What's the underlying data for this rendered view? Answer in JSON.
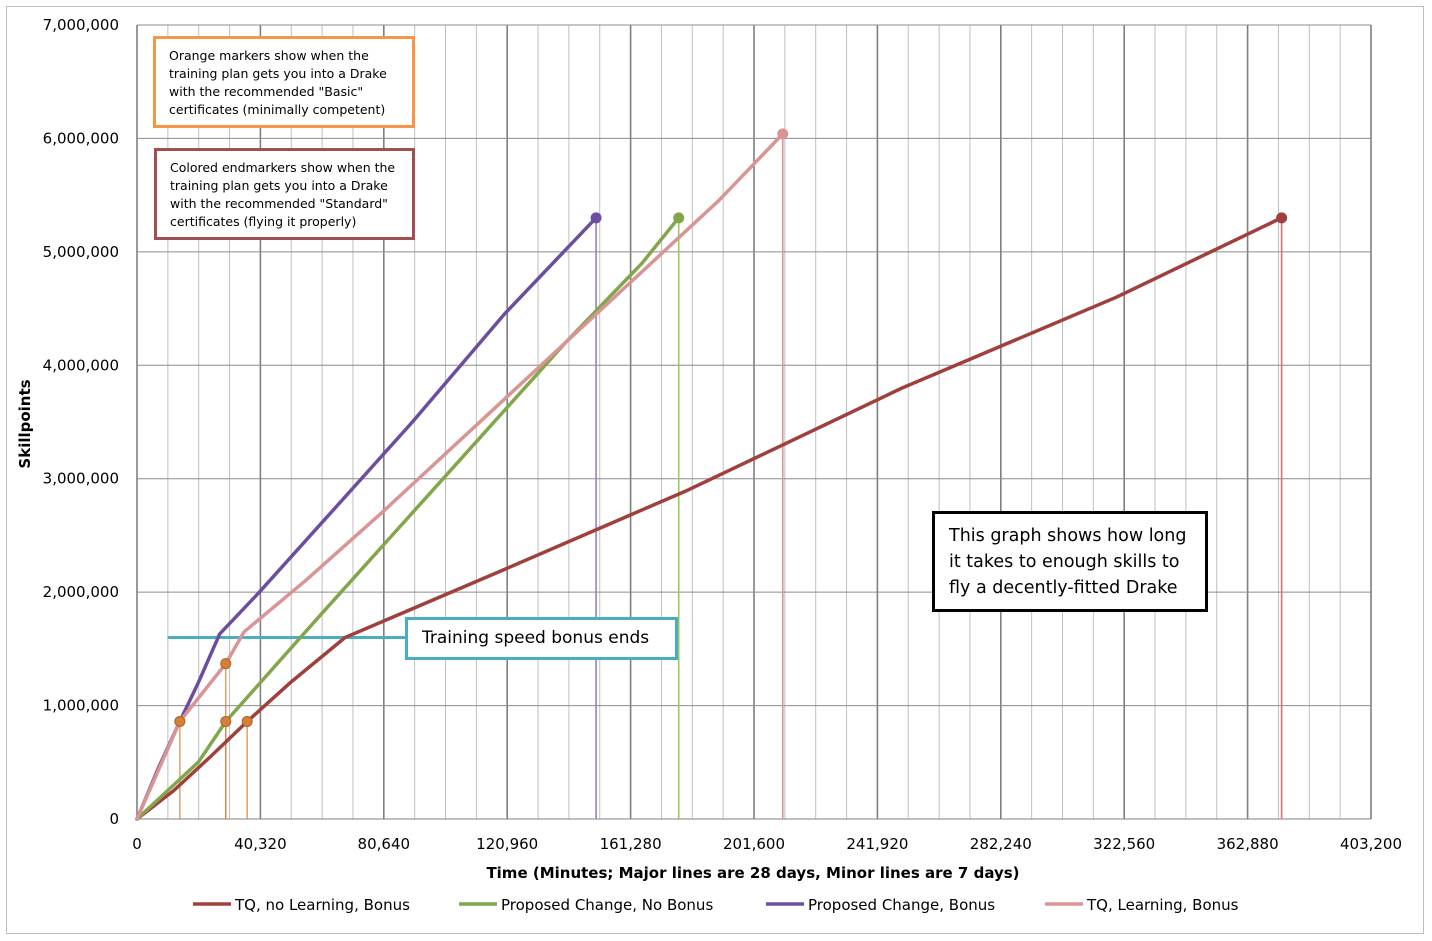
{
  "chart_data": {
    "type": "line",
    "title": "",
    "xlabel": "Time (Minutes; Major lines are 28 days, Minor lines are 7 days)",
    "ylabel": "Skillpoints",
    "xlim": [
      0,
      403200
    ],
    "ylim": [
      0,
      7000000
    ],
    "x_ticks": [
      0,
      40320,
      80640,
      120960,
      161280,
      201600,
      241920,
      282240,
      322560,
      362880,
      403200
    ],
    "x_tick_labels": [
      "0",
      "40,320",
      "80,640",
      "120,960",
      "161,280",
      "201,600",
      "241,920",
      "282,240",
      "322,560",
      "362,880",
      "403,200"
    ],
    "y_ticks": [
      0,
      1000000,
      2000000,
      3000000,
      4000000,
      5000000,
      6000000,
      7000000
    ],
    "y_tick_labels": [
      "0",
      "1,000,000",
      "2,000,000",
      "3,000,000",
      "4,000,000",
      "5,000,000",
      "6,000,000",
      "7,000,000"
    ],
    "grid": {
      "major_x_step": 40320,
      "minor_x_step": 10080,
      "major_y_step": 1000000
    },
    "legend_position": "bottom",
    "bonus_line": {
      "x_start": 10000,
      "x_end": 88000,
      "y": 1600000,
      "color": "#4bacc6"
    },
    "series": [
      {
        "name": "TQ, no Learning, Bonus",
        "color": "#a0403c",
        "points": [
          [
            0,
            0
          ],
          [
            12000,
            250000
          ],
          [
            24000,
            550000
          ],
          [
            36000,
            860000
          ],
          [
            50000,
            1200000
          ],
          [
            68000,
            1600000
          ],
          [
            120000,
            2200000
          ],
          [
            180000,
            2900000
          ],
          [
            250000,
            3800000
          ],
          [
            320000,
            4600000
          ],
          [
            374000,
            5300000
          ]
        ],
        "basic_marker": [
          36000,
          860000
        ],
        "end_marker": [
          374000,
          5300000
        ],
        "drop_color": "#e36c6c"
      },
      {
        "name": "Proposed Change, No Bonus",
        "color": "#82a64a",
        "points": [
          [
            0,
            0
          ],
          [
            20000,
            500000
          ],
          [
            29000,
            860000
          ],
          [
            60000,
            1800000
          ],
          [
            100000,
            3000000
          ],
          [
            140000,
            4200000
          ],
          [
            165000,
            4900000
          ],
          [
            177000,
            5300000
          ]
        ],
        "basic_marker": [
          29000,
          860000
        ],
        "end_marker": [
          177000,
          5300000
        ],
        "drop_color": "#9bc85a"
      },
      {
        "name": "Proposed Change, Bonus",
        "color": "#6b4f9e",
        "points": [
          [
            0,
            0
          ],
          [
            7000,
            450000
          ],
          [
            14000,
            860000
          ],
          [
            20000,
            1200000
          ],
          [
            27000,
            1630000
          ],
          [
            40000,
            2000000
          ],
          [
            60000,
            2600000
          ],
          [
            90000,
            3500000
          ],
          [
            120000,
            4450000
          ],
          [
            150000,
            5300000
          ]
        ],
        "basic_marker": [
          14000,
          860000
        ],
        "end_marker": [
          150000,
          5300000
        ],
        "drop_color": "#9a7fc8"
      },
      {
        "name": "TQ, Learning, Bonus",
        "color": "#d99594",
        "points": [
          [
            0,
            0
          ],
          [
            14000,
            860000
          ],
          [
            29000,
            1370000
          ],
          [
            35000,
            1650000
          ],
          [
            55000,
            2100000
          ],
          [
            80000,
            2700000
          ],
          [
            120000,
            3700000
          ],
          [
            160000,
            4700000
          ],
          [
            190000,
            5450000
          ],
          [
            211000,
            6040000
          ]
        ],
        "basic_marker": [
          29000,
          1370000
        ],
        "end_marker": [
          211000,
          6040000
        ],
        "drop_color": "#d99594"
      }
    ],
    "marker_colors": {
      "basic": "#d4803a"
    }
  },
  "annotations": {
    "orange_note": "Orange markers show when the training plan gets you into a Drake with the recommended \"Basic\" certificates (minimally competent)",
    "red_note": "Colored endmarkers show when the training plan gets you into a Drake with the recommended \"Standard\" certificates (flying it properly)",
    "teal_note": "Training speed bonus ends",
    "black_note": "This graph shows how long it takes to enough skills to fly a decently-fitted Drake"
  }
}
